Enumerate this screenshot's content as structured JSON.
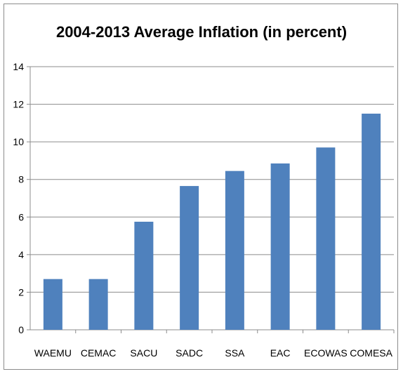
{
  "chart_data": {
    "type": "bar",
    "title": "2004-2013 Average Inflation (in percent)",
    "xlabel": "",
    "ylabel": "",
    "categories": [
      "WAEMU",
      "CEMAC",
      "SACU",
      "SADC",
      "SSA",
      "EAC",
      "ECOWAS",
      "COMESA"
    ],
    "series": [
      {
        "values": [
          2.7,
          2.7,
          5.75,
          7.65,
          8.45,
          8.85,
          9.7,
          11.5
        ],
        "color": "#4f81bd"
      }
    ],
    "ylim": [
      0,
      14
    ],
    "yticks": [
      0,
      2,
      4,
      6,
      8,
      10,
      12,
      14
    ],
    "grid": true,
    "legend": "none"
  }
}
